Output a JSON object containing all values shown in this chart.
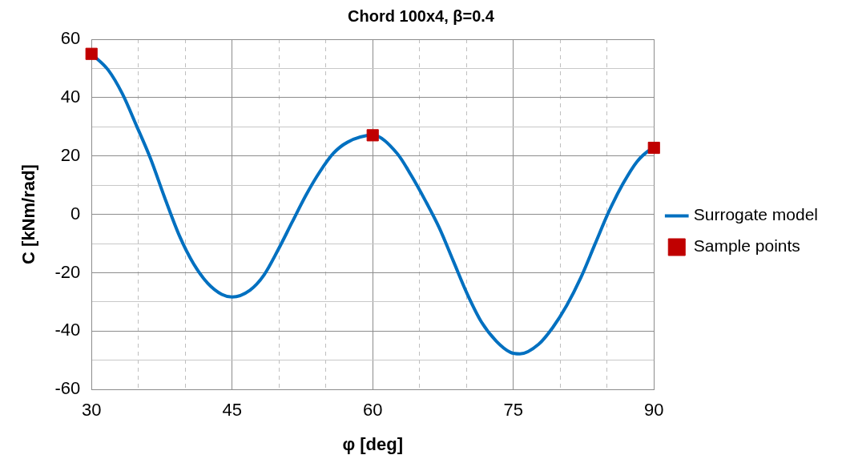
{
  "chart_data": {
    "type": "line",
    "title": "Chord 100x4, β=0.4",
    "xlabel": "φ [deg]",
    "ylabel": "C [kNm/rad]",
    "xlim": [
      30,
      90
    ],
    "xticks": [
      30,
      {
        "value": 35,
        "label": null
      },
      {
        "value": 40,
        "label": null
      },
      45,
      {
        "value": 50,
        "label": null
      },
      {
        "value": 55,
        "label": null
      },
      60,
      {
        "value": 65,
        "label": null
      },
      {
        "value": 70,
        "label": null
      },
      75,
      {
        "value": 80,
        "label": null
      },
      {
        "value": 85,
        "label": null
      },
      90
    ],
    "ylim": [
      -60,
      60
    ],
    "yticks": [
      -60,
      {
        "value": -50,
        "label": null
      },
      -40,
      {
        "value": -30,
        "label": null
      },
      -20,
      {
        "value": -10,
        "label": null
      },
      0,
      {
        "value": 10,
        "label": null
      },
      20,
      {
        "value": 30,
        "label": null
      },
      40,
      {
        "value": 50,
        "label": null
      },
      60
    ],
    "grid": true,
    "legend": "right",
    "series": [
      {
        "name": "Surrogate model",
        "type": "line",
        "color": "#0070c0",
        "marker": "none",
        "line_style": "solid",
        "x": [
          30,
          31.8,
          33.3,
          34.8,
          36.3,
          37.8,
          39.4,
          40.9,
          42.4,
          43.9,
          45,
          46.9,
          48.4,
          49.9,
          51.4,
          52.9,
          54.3,
          55.8,
          57.3,
          60,
          62.6,
          64.1,
          65.6,
          67.1,
          68.6,
          70.1,
          71.6,
          73.2,
          74.7,
          75.7,
          77.7,
          79.2,
          80.7,
          82.2,
          83.7,
          85.2,
          86.7,
          88.2,
          89.7,
          90
        ],
        "values": [
          55,
          49.4,
          41.3,
          30.4,
          19.1,
          5.8,
          -7.5,
          -17,
          -23.6,
          -27.4,
          -28.3,
          -26,
          -20.8,
          -12.2,
          -2.7,
          6.7,
          14.3,
          20.9,
          24.7,
          27.1,
          20.9,
          13.4,
          4.8,
          -4.6,
          -16,
          -27.4,
          -36.9,
          -43.5,
          -47.3,
          -47.8,
          -44.5,
          -38.8,
          -31.2,
          -21.7,
          -10.3,
          1,
          10.5,
          18.1,
          22.4,
          22.8
        ]
      },
      {
        "name": "Sample points",
        "type": "scatter",
        "color": "#c00000",
        "marker": "square",
        "x": [
          30,
          60,
          90
        ],
        "values": [
          55,
          27.1,
          22.8
        ]
      }
    ]
  }
}
